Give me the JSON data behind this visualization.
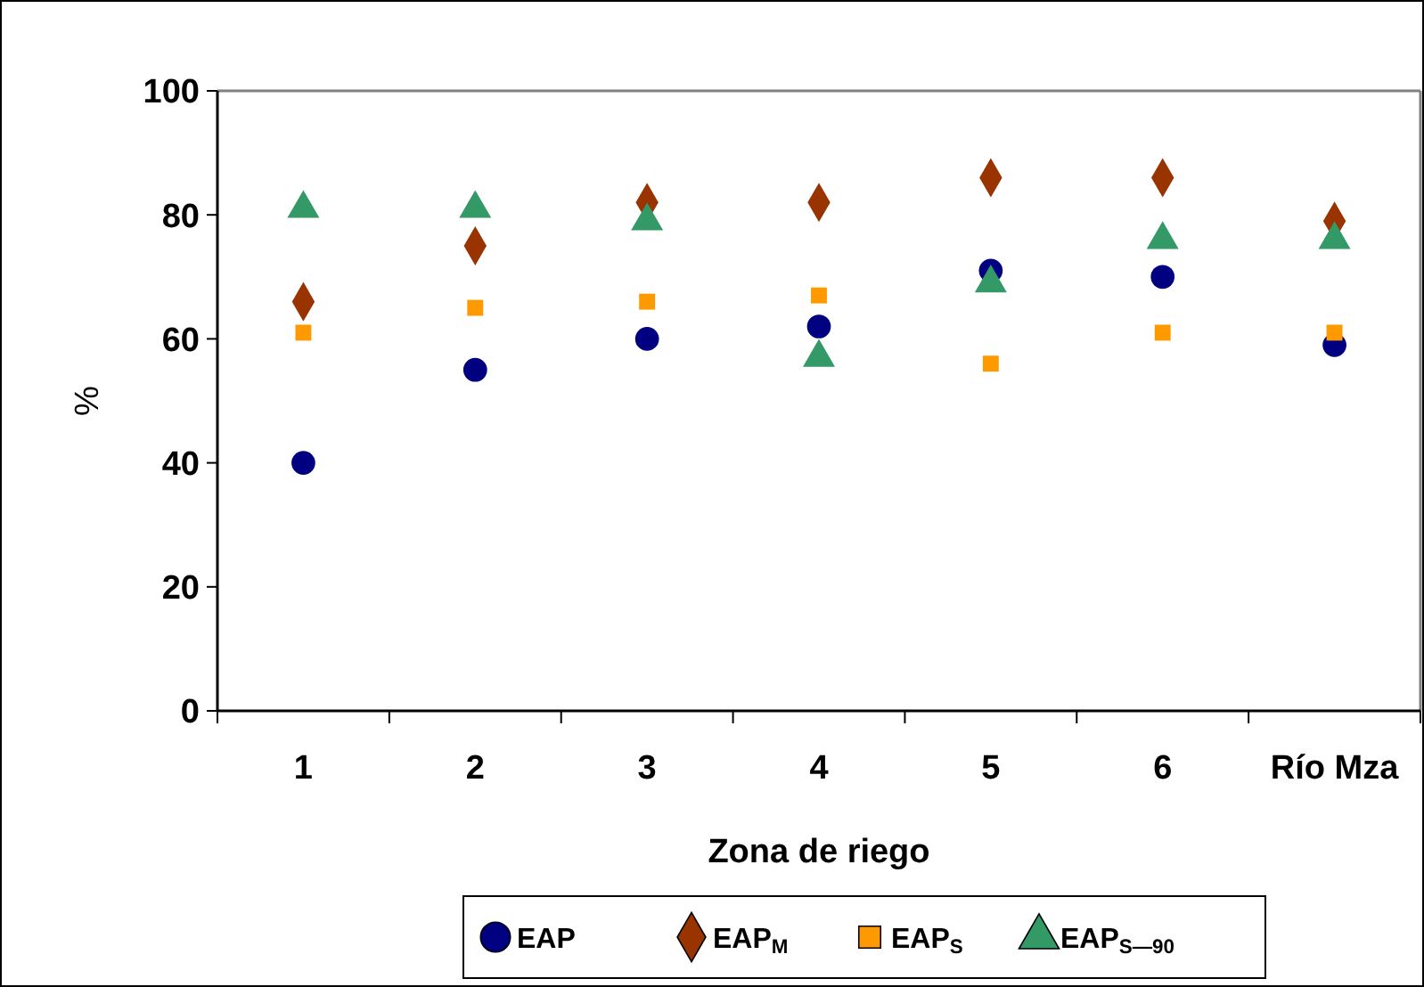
{
  "chart_data": {
    "type": "scatter",
    "xlabel": "Zona de riego",
    "ylabel": "%",
    "categories": [
      "1",
      "2",
      "3",
      "4",
      "5",
      "6",
      "Río Mza"
    ],
    "ylim": [
      0,
      100
    ],
    "yticks": [
      0,
      20,
      40,
      60,
      80,
      100
    ],
    "grid": false,
    "legend": "bottom",
    "series": [
      {
        "name": "EAP",
        "color": "#000080",
        "marker": "circle",
        "values": [
          40,
          55,
          60,
          62,
          71,
          70,
          59
        ]
      },
      {
        "name": "EAP$_{M}$",
        "color": "#993300",
        "marker": "diamond",
        "values": [
          66,
          75,
          82,
          82,
          86,
          86,
          79
        ]
      },
      {
        "name": "EAP$_{S}$",
        "color": "#ff9900",
        "marker": "square",
        "values": [
          61,
          65,
          66,
          67,
          56,
          61,
          61
        ]
      },
      {
        "name": "EAP$_{S—90}$",
        "color": "#339966",
        "marker": "triangle",
        "values": [
          81,
          81,
          79,
          57,
          69,
          76,
          76
        ]
      }
    ]
  }
}
